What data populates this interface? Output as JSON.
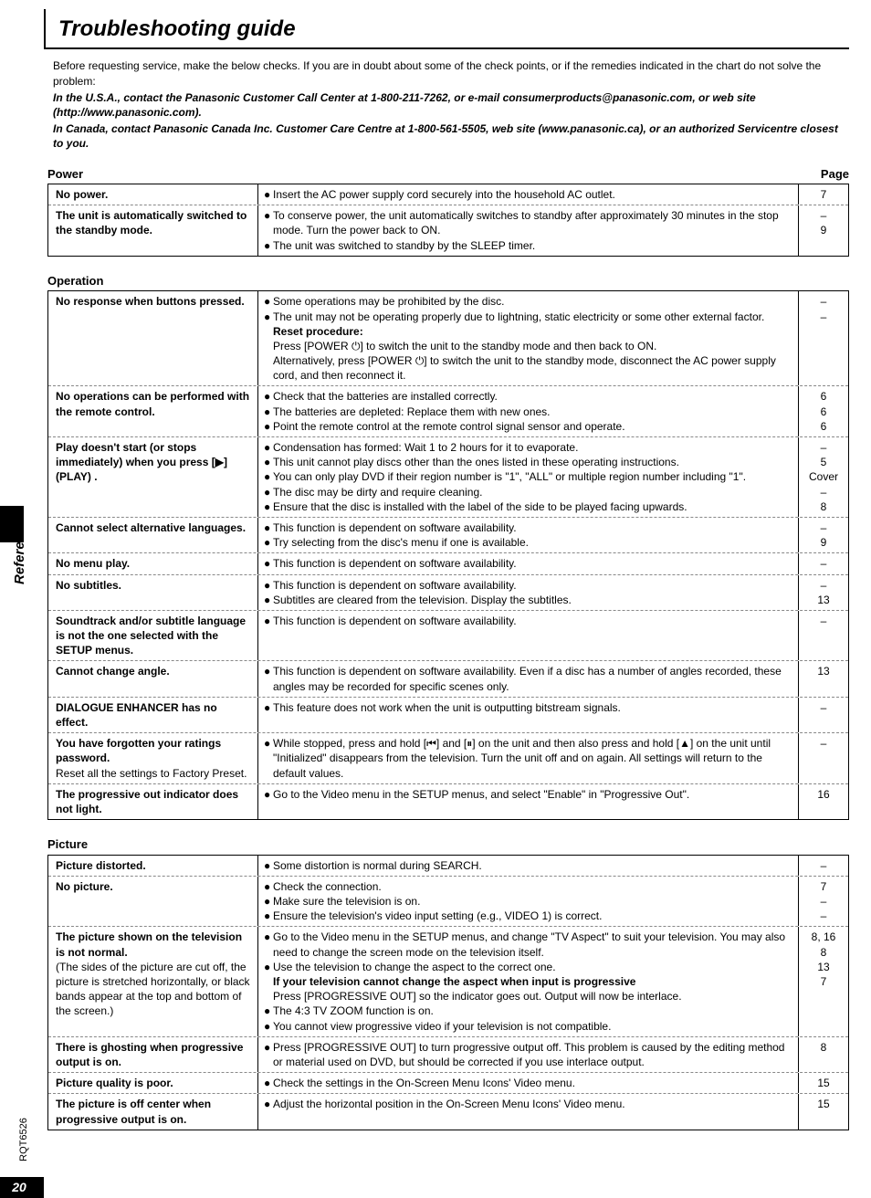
{
  "title": "Troubleshooting guide",
  "intro": {
    "line1": "Before requesting service, make the below checks. If you are in doubt about some of the check points, or if the remedies indicated in the chart do not solve the problem:",
    "line2": "In the U.S.A., contact the Panasonic Customer Call Center at 1-800-211-7262, or e-mail consumerproducts@panasonic.com, or web site (http://www.panasonic.com).",
    "line3": "In Canada, contact Panasonic Canada Inc. Customer Care Centre at 1-800-561-5505, web site (www.panasonic.ca), or an authorized Servicentre closest to you."
  },
  "page_label": "Page",
  "vert_label": "Reference",
  "doc_code": "RQT6526",
  "page_number": "20",
  "sections": [
    {
      "name": "Power",
      "rows": [
        {
          "problem": "No power.",
          "remedies": [
            "Insert the AC power supply cord securely into the household AC outlet."
          ],
          "pages": [
            "7"
          ]
        },
        {
          "problem": "The unit is automatically switched to the standby mode.",
          "remedies": [
            "To conserve power, the unit automatically switches to standby after approximately 30 minutes in the stop  mode. Turn the power back to ON.",
            "The unit was switched to standby by the SLEEP timer."
          ],
          "pages": [
            "–",
            "9"
          ]
        }
      ]
    },
    {
      "name": "Operation",
      "rows": [
        {
          "problem": "No response when buttons pressed.",
          "remedies": [
            "Some operations may be prohibited by the disc.",
            "The unit may not be operating properly due to lightning, static electricity or some other external factor."
          ],
          "extra_bold": "Reset procedure:",
          "extra_plain": "Press [POWER ⏻] to switch the unit to the standby mode and then back to ON.\nAlternatively, press [POWER ⏻] to switch the unit to the standby mode, disconnect the AC power supply cord, and then reconnect it.",
          "pages": [
            "–",
            "–"
          ]
        },
        {
          "problem": "No operations can be performed with the remote control.",
          "remedies": [
            "Check that the batteries are installed correctly.",
            "The batteries are depleted: Replace them with new ones.",
            "Point the remote control at the remote control signal sensor and operate."
          ],
          "pages": [
            "6",
            "6",
            "6"
          ]
        },
        {
          "problem": "Play doesn't start (or stops immediately) when you press [▶] (PLAY) .",
          "remedies": [
            "Condensation has formed: Wait 1 to 2 hours for it to evaporate.",
            "This unit cannot play discs other than the ones listed in these operating instructions.",
            "You can only play DVD if their region number is \"1\", \"ALL\" or multiple region number including \"1\".",
            "The disc may be dirty and require cleaning.",
            "Ensure that the disc is installed with the label of the side to be played facing upwards."
          ],
          "pages": [
            "–",
            "5",
            "Cover",
            "–",
            "8"
          ]
        },
        {
          "problem": "Cannot select alternative languages.",
          "remedies": [
            "This function is dependent on software availability.",
            "Try selecting from the disc's menu if one is available."
          ],
          "pages": [
            "–",
            "9"
          ]
        },
        {
          "problem": "No menu play.",
          "remedies": [
            "This function is dependent on software availability."
          ],
          "pages": [
            "–"
          ]
        },
        {
          "problem": "No subtitles.",
          "remedies": [
            "This function is dependent on software availability.",
            "Subtitles are cleared from the television. Display the subtitles."
          ],
          "pages": [
            "–",
            "13"
          ]
        },
        {
          "problem": "Soundtrack and/or subtitle language is not the one selected with the SETUP menus.",
          "remedies": [
            "This function is dependent on software availability."
          ],
          "pages": [
            "–"
          ]
        },
        {
          "problem": "Cannot change angle.",
          "remedies": [
            "This function is dependent on software availability. Even if a disc has a number of angles recorded, these angles may be recorded for specific scenes only."
          ],
          "pages": [
            "13"
          ]
        },
        {
          "problem": "DIALOGUE ENHANCER has no effect.",
          "remedies": [
            "This feature does not work when the unit is outputting bitstream signals."
          ],
          "pages": [
            "–"
          ]
        },
        {
          "problem": "You have forgotten your ratings password.",
          "problem_sub": "Reset all the settings to Factory Preset.",
          "remedies": [
            "While stopped, press and hold [⏮] and [⏸] on the unit and then also press and hold [▲] on the unit until \"Initialized\" disappears from the television. Turn the unit off and on again. All settings will return to the default values."
          ],
          "pages": [
            "–"
          ]
        },
        {
          "problem": "The progressive out indicator does not light.",
          "remedies": [
            "Go to the Video menu in the SETUP menus, and select \"Enable\" in \"Progressive Out\"."
          ],
          "pages": [
            "16"
          ]
        }
      ]
    },
    {
      "name": "Picture",
      "rows": [
        {
          "problem": "Picture distorted.",
          "remedies": [
            "Some distortion is normal during SEARCH."
          ],
          "pages": [
            "–"
          ]
        },
        {
          "problem": "No picture.",
          "remedies": [
            "Check the connection.",
            "Make sure the television is on.",
            "Ensure the television's video input setting (e.g., VIDEO 1) is correct."
          ],
          "pages": [
            "7",
            "–",
            "–"
          ]
        },
        {
          "problem": "The picture shown on the television is not normal.",
          "problem_sub": "(The sides of the picture are cut off, the picture is stretched horizontally, or black bands appear at the top and bottom of the screen.)",
          "remedies": [
            "Go to the Video menu in the SETUP menus, and change \"TV Aspect\" to suit your television. You may also need to change the screen mode on the television itself.",
            "Use the television to change the aspect to the correct one."
          ],
          "extra_bold": "If your television cannot change the aspect when input is progressive",
          "extra_plain2": "Press [PROGRESSIVE OUT] so the indicator goes out. Output will now be interlace.",
          "remedies_after": [
            "The 4:3 TV ZOOM function is on.",
            "You cannot view progressive video if your television is not compatible."
          ],
          "pages": [
            "8, 16",
            "",
            "8",
            "",
            "13",
            "7"
          ]
        },
        {
          "problem": "There is ghosting when progressive output is on.",
          "remedies": [
            "Press [PROGRESSIVE OUT] to turn progressive output off. This problem is caused by the editing method or material used on DVD, but should be corrected if you use interlace output."
          ],
          "pages": [
            "8"
          ]
        },
        {
          "problem": "Picture quality is poor.",
          "remedies": [
            "Check the settings in the On-Screen Menu Icons' Video menu."
          ],
          "pages": [
            "15"
          ]
        },
        {
          "problem": "The picture is off center when progressive output is on.",
          "remedies": [
            "Adjust the horizontal position in the On-Screen Menu Icons' Video menu."
          ],
          "pages": [
            "15"
          ]
        }
      ]
    }
  ]
}
